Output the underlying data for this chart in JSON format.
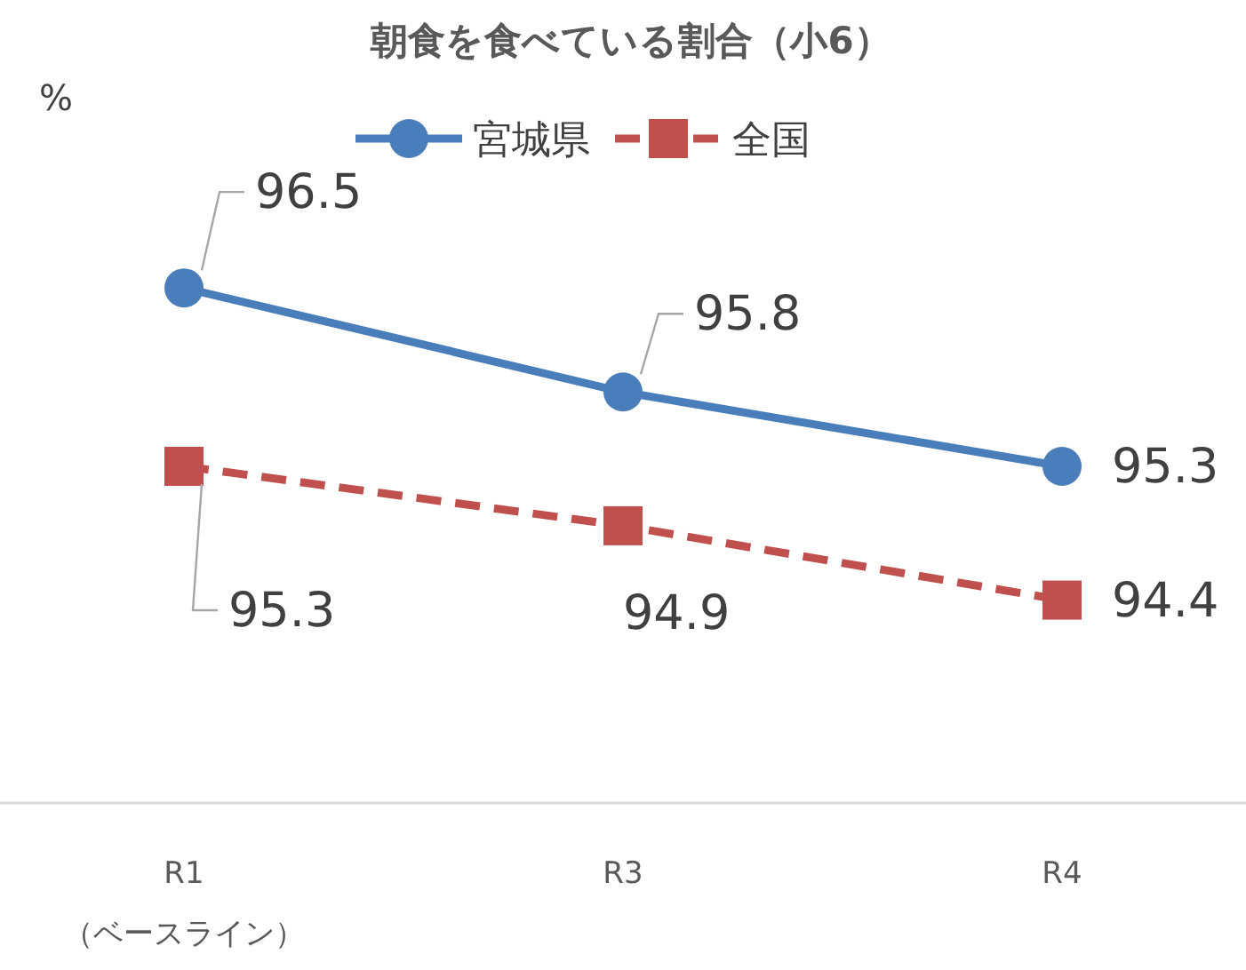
{
  "chart_data": {
    "type": "line",
    "title": "朝食を食べている割合（小6）",
    "ylabel": "%",
    "categories": [
      "R1\n（ベースライン）",
      "R3",
      "R4"
    ],
    "series": [
      {
        "name": "宮城県",
        "color": "#4a7ebb",
        "values": [
          96.5,
          95.8,
          95.3
        ],
        "marker": "circle",
        "line_style": "solid"
      },
      {
        "name": "全国",
        "color": "#c0504d",
        "values": [
          95.3,
          94.9,
          94.4
        ],
        "marker": "square",
        "line_style": "dashed"
      }
    ],
    "data_labels": true,
    "legend": "top"
  }
}
